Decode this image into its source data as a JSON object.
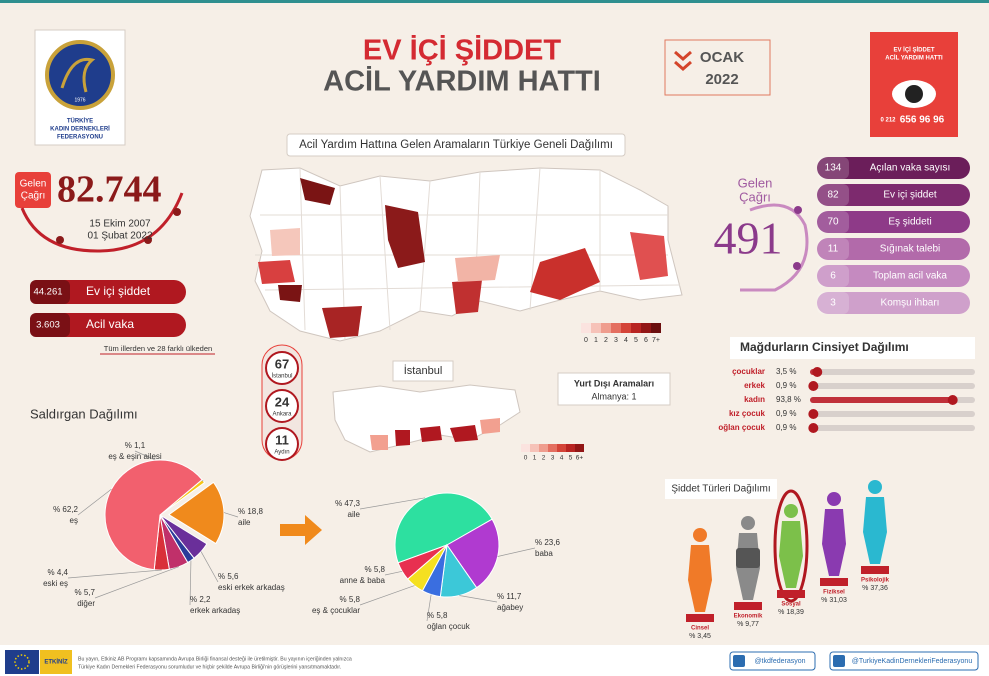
{
  "header": {
    "title": "EV İÇİ ŞİDDET",
    "subtitle": "ACİL YARDIM HATTI",
    "month": "OCAK",
    "year": "2022"
  },
  "logo": {
    "year": "1976",
    "name": [
      "TÜRKİYE",
      "KADIN DERNEKLERİ",
      "FEDERASYONU"
    ]
  },
  "poster": {
    "line1": "EV İÇİ ŞİDDET",
    "line2": "ACİL YARDIM HATTI",
    "phone_prefix": "0 212",
    "phone": "656 96 96"
  },
  "total_calls": {
    "label": [
      "Gelen",
      "Çağrı"
    ],
    "value": "82.744",
    "start": "15 Ekim 2007",
    "end": "01 Şubat 2022"
  },
  "summary": [
    {
      "value": "44.261",
      "label": "Ev içi şiddet"
    },
    {
      "value": "3.603",
      "label": "Acil vaka"
    }
  ],
  "summary_note": "Tüm illerden ve 28 farklı ülkeden",
  "map": {
    "title": "Acil Yardım Hattına Gelen Aramaların Türkiye Geneli Dağılımı",
    "legend": [
      "0",
      "1",
      "2",
      "3",
      "4",
      "5",
      "6",
      "7+"
    ]
  },
  "cities": [
    {
      "value": "67",
      "label": "İstanbul"
    },
    {
      "value": "24",
      "label": "Ankara"
    },
    {
      "value": "11",
      "label": "Aydın"
    }
  ],
  "istanbul": {
    "title": "İstanbul",
    "legend": [
      "0",
      "1",
      "2",
      "3",
      "4",
      "5",
      "6+"
    ]
  },
  "abroad": {
    "title": "Yurt Dışı Aramaları",
    "item": "Almanya: 1"
  },
  "monthly": {
    "label": [
      "Gelen",
      "Çağrı"
    ],
    "value": "491",
    "items": [
      {
        "value": "134",
        "label": "Açılan vaka sayısı"
      },
      {
        "value": "82",
        "label": "Ev içi şiddet"
      },
      {
        "value": "70",
        "label": "Eş şiddeti"
      },
      {
        "value": "11",
        "label": "Sığınak talebi"
      },
      {
        "value": "6",
        "label": "Toplam acil vaka"
      },
      {
        "value": "3",
        "label": "Komşu ihbarı"
      }
    ]
  },
  "gender": {
    "title": "Mağdurların Cinsiyet Dağılımı",
    "rows": [
      {
        "label": "çocuklar",
        "value": 3.5,
        "value_label": "3,5 %"
      },
      {
        "label": "erkek",
        "value": 0.9,
        "value_label": "0,9 %"
      },
      {
        "label": "kadın",
        "value": 93.8,
        "value_label": "93,8 %"
      },
      {
        "label": "kız çocuk",
        "value": 0.9,
        "value_label": "0,9 %"
      },
      {
        "label": "oğlan çocuk",
        "value": 0.9,
        "value_label": "0,9 %"
      }
    ]
  },
  "attacker": {
    "title": "Saldırgan Dağılımı",
    "slices": [
      {
        "label": "eş & eşin ailesi",
        "value": 1.1,
        "value_label": "% 1,1",
        "color": "#f5c518"
      },
      {
        "label": "aile",
        "value": 18.8,
        "value_label": "% 18,8",
        "color": "#f08a1c"
      },
      {
        "label": "eski erkek arkadaş",
        "value": 5.6,
        "value_label": "% 5,6",
        "color": "#6a2f9a"
      },
      {
        "label": "erkek arkadaş",
        "value": 2.2,
        "value_label": "% 2,2",
        "color": "#2b3b9a"
      },
      {
        "label": "diğer",
        "value": 5.7,
        "value_label": "% 5,7",
        "color": "#c0306a"
      },
      {
        "label": "eski eş",
        "value": 4.4,
        "value_label": "% 4,4",
        "color": "#d9303a"
      },
      {
        "label": "eş",
        "value": 62.2,
        "value_label": "% 62,2",
        "color": "#f2606e"
      }
    ]
  },
  "family": {
    "slices": [
      {
        "label": "aile",
        "value": 47.3,
        "value_label": "% 47,3",
        "color": "#2de0a0"
      },
      {
        "label": "baba",
        "value": 23.6,
        "value_label": "% 23,6",
        "color": "#b03ad0"
      },
      {
        "label": "ağabey",
        "value": 11.7,
        "value_label": "% 11,7",
        "color": "#3cc8d8"
      },
      {
        "label": "oğlan çocuk",
        "value": 5.8,
        "value_label": "% 5,8",
        "color": "#3a6ee0"
      },
      {
        "label": "eş & çocuklar",
        "value": 5.8,
        "value_label": "% 5,8",
        "color": "#f5e020"
      },
      {
        "label": "anne & baba",
        "value": 5.8,
        "value_label": "% 5,8",
        "color": "#e83050"
      }
    ]
  },
  "violence": {
    "title": "Şiddet Türleri Dağılımı",
    "types": [
      {
        "label": "Cinsel",
        "value_label": "% 3,45"
      },
      {
        "label": "Ekonomik",
        "value_label": "% 9,77"
      },
      {
        "label": "Sosyal",
        "value_label": "% 18,39"
      },
      {
        "label": "Fiziksel",
        "value_label": "% 31,03"
      },
      {
        "label": "Psikolojik",
        "value_label": "% 37,36"
      }
    ]
  },
  "footer": {
    "logo": "ETKİNİZ",
    "disclaimer": [
      "Bu yayın, Etkiniz AB Programı kapsamında Avrupa Birliği finansal desteği ile üretilmiştir. Bu yayının içeriğinden yalnızca",
      "Türkiye Kadın Dernekleri Federasyonu sorumludur ve hiçbir şekilde Avrupa Birliği'nin görüşlerini yansıtmamaktadır."
    ],
    "twitter": "@tkdfederasyon",
    "facebook": "@TurkiyeKadinDernekleriFederasyonu"
  }
}
